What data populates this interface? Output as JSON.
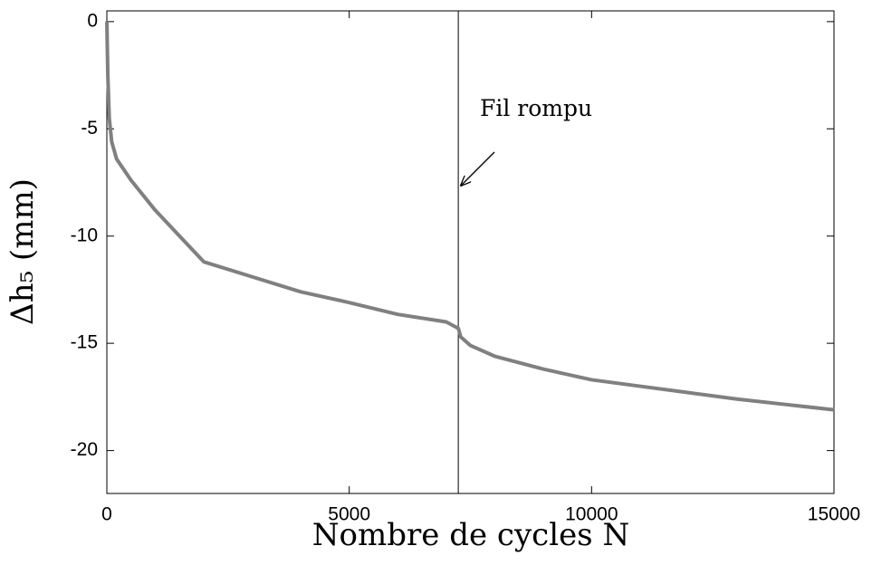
{
  "chart_data": {
    "type": "line",
    "xlabel": "Nombre de cycles N",
    "ylabel": "Δh₅ (mm)",
    "annotation": "Fil rompu",
    "vline": 7250,
    "x": [
      0,
      20,
      50,
      100,
      200,
      500,
      1000,
      1500,
      2000,
      3000,
      4000,
      5000,
      6000,
      7000,
      7250,
      7300,
      7500,
      8000,
      9000,
      10000,
      11000,
      12000,
      13000,
      14000,
      15000
    ],
    "series": [
      {
        "name": "Δh₅",
        "color": "#808080",
        "values": [
          0,
          -2.5,
          -4.5,
          -5.6,
          -6.4,
          -7.4,
          -8.8,
          -10.0,
          -11.2,
          -11.9,
          -12.6,
          -13.1,
          -13.65,
          -14.0,
          -14.3,
          -14.7,
          -15.1,
          -15.6,
          -16.2,
          -16.7,
          -17.0,
          -17.3,
          -17.6,
          -17.85,
          -18.1
        ]
      }
    ],
    "xlim": [
      0,
      15000
    ],
    "xticks": [
      0,
      5000,
      10000,
      15000
    ],
    "ylim": [
      -22,
      0.5
    ],
    "yticks": [
      0,
      -5,
      -10,
      -15,
      -20
    ]
  }
}
